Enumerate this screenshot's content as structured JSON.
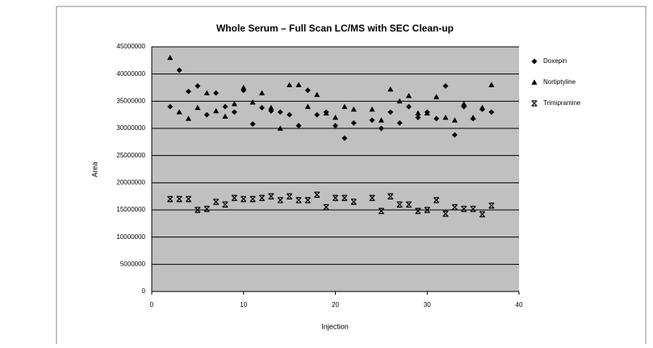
{
  "chart_data": {
    "type": "scatter",
    "title": "Whole Serum – Full Scan LC/MS with SEC Clean-up",
    "x_label": "Injection",
    "y_label": "Area",
    "xlim": [
      0,
      40
    ],
    "xticks": [
      0,
      10,
      20,
      30,
      40
    ],
    "ylim": [
      0,
      45000000
    ],
    "yticks": [
      0,
      5000000,
      10000000,
      15000000,
      20000000,
      25000000,
      30000000,
      35000000,
      40000000,
      45000000
    ],
    "grid": true,
    "legend": "right",
    "x": [
      2,
      3,
      4,
      5,
      6,
      7,
      8,
      9,
      10,
      11,
      12,
      13,
      14,
      15,
      16,
      17,
      18,
      19,
      20,
      21,
      22,
      24,
      25,
      26,
      27,
      28,
      29,
      30,
      31,
      32,
      33,
      34,
      35,
      36,
      37
    ],
    "series": [
      {
        "name": "Doxepin",
        "color": "#000000",
        "marker": "diamond",
        "values": [
          34000000,
          40700000,
          36800000,
          37800000,
          32500000,
          36500000,
          34000000,
          33000000,
          37000000,
          30800000,
          33800000,
          33200000,
          33000000,
          32500000,
          30500000,
          37000000,
          32500000,
          33000000,
          30500000,
          28200000,
          31000000,
          31500000,
          30000000,
          33000000,
          31000000,
          34000000,
          32000000,
          33000000,
          31800000,
          37800000,
          28800000,
          34000000,
          31800000,
          33500000,
          33000000
        ]
      },
      {
        "name": "Nortiptyline",
        "color": "#000000",
        "marker": "triangle",
        "values": [
          43000000,
          33000000,
          31800000,
          33800000,
          36500000,
          33200000,
          32200000,
          34500000,
          37500000,
          34800000,
          36500000,
          33800000,
          30000000,
          38000000,
          38000000,
          34000000,
          36200000,
          32800000,
          32000000,
          34000000,
          33500000,
          33500000,
          31500000,
          37200000,
          35000000,
          36000000,
          32800000,
          32800000,
          35800000,
          32000000,
          31500000,
          34500000,
          32000000,
          33800000,
          38000000
        ]
      },
      {
        "name": "Trimipramine",
        "color": "#000000",
        "marker": "x",
        "values": [
          17000000,
          17000000,
          17000000,
          15000000,
          15200000,
          16500000,
          16000000,
          17200000,
          17000000,
          17000000,
          17200000,
          17500000,
          16800000,
          17500000,
          16800000,
          16800000,
          17800000,
          15500000,
          17200000,
          17200000,
          16500000,
          17200000,
          14800000,
          17500000,
          16000000,
          16000000,
          14800000,
          15000000,
          16800000,
          14300000,
          15500000,
          15200000,
          15200000,
          14200000,
          15800000
        ]
      }
    ]
  }
}
